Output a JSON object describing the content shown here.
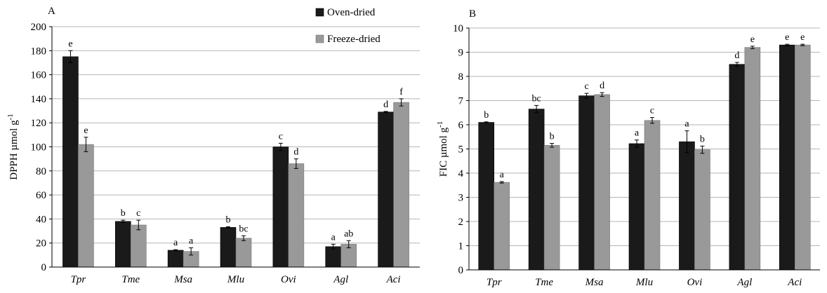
{
  "legend": [
    "Oven-dried",
    "Freeze-dried"
  ],
  "colors": {
    "oven": "#1a1a1a",
    "freeze": "#999999",
    "grid": "#b5b5b5",
    "axis": "#000000",
    "errorbar": "#000000"
  },
  "chart_data": [
    {
      "type": "bar",
      "panel": "A",
      "ylabel": "DPPH  µmol g⁻¹",
      "ylim": [
        0,
        200
      ],
      "yticks": [
        0,
        20,
        40,
        60,
        80,
        100,
        120,
        140,
        160,
        180,
        200
      ],
      "grid": true,
      "legend_position": "top-right",
      "categories": [
        "Tpr",
        "Tme",
        "Msa",
        "Mlu",
        "Ovi",
        "Agl",
        "Aci"
      ],
      "series": [
        {
          "name": "Oven-dried",
          "values": [
            175,
            38,
            14,
            33,
            100,
            17,
            129
          ],
          "errors": [
            5,
            1,
            0.5,
            0.5,
            3,
            2,
            0.5
          ],
          "letters": [
            "e",
            "b",
            "a",
            "b",
            "c",
            "a",
            "d"
          ]
        },
        {
          "name": "Freeze-dried",
          "values": [
            102,
            35,
            13,
            24,
            86,
            19,
            137
          ],
          "errors": [
            6,
            4,
            3,
            2,
            4,
            3,
            3
          ],
          "letters": [
            "e",
            "c",
            "a",
            "bc",
            "d",
            "ab",
            "f"
          ]
        }
      ]
    },
    {
      "type": "bar",
      "panel": "B",
      "ylabel": "FIC  µmol g⁻¹",
      "ylim": [
        0,
        10
      ],
      "yticks": [
        0,
        1,
        2,
        3,
        4,
        5,
        6,
        7,
        8,
        9,
        10
      ],
      "grid": true,
      "categories": [
        "Tpr",
        "Tme",
        "Msa",
        "Mlu",
        "Ovi",
        "Agl",
        "Aci"
      ],
      "series": [
        {
          "name": "Oven-dried",
          "values": [
            6.1,
            6.65,
            7.2,
            5.22,
            5.3,
            8.5,
            9.3
          ],
          "errors": [
            0.02,
            0.15,
            0.1,
            0.15,
            0.45,
            0.08,
            0.03
          ],
          "letters": [
            "b",
            "bc",
            "c",
            "a",
            "a",
            "d",
            "e"
          ]
        },
        {
          "name": "Freeze-dried",
          "values": [
            3.62,
            5.15,
            7.25,
            6.18,
            4.97,
            9.2,
            9.3
          ],
          "errors": [
            0.03,
            0.08,
            0.08,
            0.12,
            0.15,
            0.05,
            0.03
          ],
          "letters": [
            "a",
            "b",
            "d",
            "c",
            "b",
            "e",
            "e"
          ]
        }
      ]
    }
  ]
}
